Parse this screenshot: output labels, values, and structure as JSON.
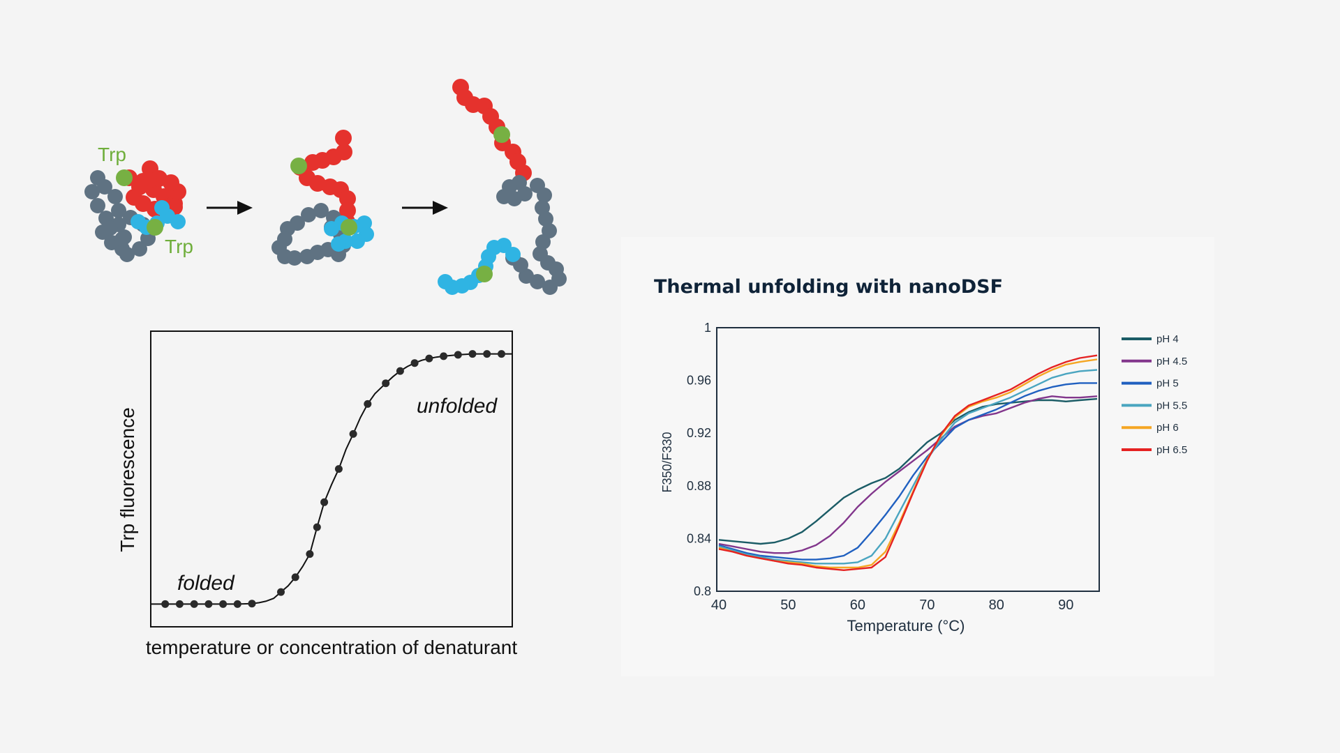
{
  "illustration": {
    "stages": [
      "folded-protein",
      "partially-unfolded-protein",
      "unfolded-protein"
    ],
    "trp_label_top": "Trp",
    "trp_label_bottom": "Trp",
    "colors": {
      "gray": "#5f7282",
      "red": "#e5322d",
      "blue": "#2fb4e3",
      "green": "#77b043"
    }
  },
  "chart_data": [
    {
      "type": "line",
      "title": "",
      "xlabel": "temperature or concentration of denaturant",
      "ylabel": "Trp fluorescence",
      "annotations": {
        "folded": "folded",
        "unfolded": "unfolded"
      },
      "grid": false,
      "x": [
        0.04,
        0.08,
        0.12,
        0.16,
        0.2,
        0.24,
        0.28,
        0.36,
        0.4,
        0.44,
        0.46,
        0.48,
        0.52,
        0.56,
        0.6,
        0.65,
        0.69,
        0.73,
        0.77,
        0.81,
        0.85,
        0.89,
        0.93,
        0.97
      ],
      "values": [
        0.0,
        0.0,
        0.0,
        0.0,
        0.0,
        0.0,
        0.002,
        0.053,
        0.118,
        0.22,
        0.338,
        0.448,
        0.594,
        0.748,
        0.88,
        0.971,
        1.025,
        1.06,
        1.08,
        1.09,
        1.096,
        1.1,
        1.1,
        1.1
      ],
      "curve_x": [
        0.0,
        0.04,
        0.08,
        0.12,
        0.16,
        0.2,
        0.24,
        0.28,
        0.3,
        0.32,
        0.34,
        0.36,
        0.38,
        0.4,
        0.42,
        0.44,
        0.46,
        0.48,
        0.5,
        0.52,
        0.54,
        0.56,
        0.58,
        0.6,
        0.62,
        0.65,
        0.67,
        0.69,
        0.71,
        0.73,
        0.75,
        0.77,
        0.79,
        0.81,
        0.83,
        0.85,
        0.87,
        0.89,
        0.91,
        0.93,
        0.95,
        0.97,
        1.0
      ],
      "curve_y": [
        0.0,
        0.0,
        0.0,
        0.0,
        0.0,
        0.0,
        0.0,
        0.002,
        0.006,
        0.013,
        0.025,
        0.053,
        0.08,
        0.118,
        0.165,
        0.22,
        0.338,
        0.448,
        0.525,
        0.594,
        0.68,
        0.748,
        0.82,
        0.88,
        0.925,
        0.971,
        1.0,
        1.025,
        1.045,
        1.06,
        1.072,
        1.08,
        1.086,
        1.09,
        1.093,
        1.096,
        1.098,
        1.1,
        1.1,
        1.1,
        1.1,
        1.1,
        1.1
      ],
      "xlim": [
        0,
        1
      ],
      "ylim": [
        -0.1,
        1.2
      ]
    },
    {
      "type": "line",
      "title": "Thermal unfolding with nanoDSF",
      "xlabel": "Temperature (°C)",
      "ylabel": "F350/F330",
      "xlim": [
        39.7,
        94.8
      ],
      "ylim": [
        0.8,
        1.0
      ],
      "xticks": [
        40,
        50,
        60,
        70,
        80,
        90
      ],
      "yticks": [
        0.8,
        0.84,
        0.88,
        0.92,
        0.96,
        1.0
      ],
      "ytick_labels": [
        "0.8",
        "0.84",
        "0.88",
        "0.92",
        "0.96",
        "1"
      ],
      "legend_position": "right",
      "grid": false,
      "x": [
        40,
        42,
        44,
        46,
        48,
        50,
        52,
        54,
        56,
        58,
        60,
        62,
        64,
        66,
        68,
        70,
        72,
        74,
        76,
        78,
        80,
        82,
        84,
        86,
        88,
        90,
        92,
        94.5
      ],
      "series": [
        {
          "name": "pH 4",
          "color": "#1b5c66",
          "values": [
            0.839,
            0.838,
            0.837,
            0.836,
            0.837,
            0.84,
            0.845,
            0.853,
            0.862,
            0.871,
            0.877,
            0.882,
            0.886,
            0.893,
            0.903,
            0.913,
            0.92,
            0.93,
            0.936,
            0.94,
            0.942,
            0.943,
            0.944,
            0.945,
            0.945,
            0.944,
            0.945,
            0.946
          ]
        },
        {
          "name": "pH 4.5",
          "color": "#82368c",
          "values": [
            0.836,
            0.834,
            0.832,
            0.83,
            0.829,
            0.829,
            0.831,
            0.835,
            0.842,
            0.852,
            0.864,
            0.874,
            0.883,
            0.891,
            0.899,
            0.907,
            0.916,
            0.925,
            0.93,
            0.933,
            0.935,
            0.939,
            0.943,
            0.946,
            0.948,
            0.947,
            0.947,
            0.948
          ]
        },
        {
          "name": "pH 5",
          "color": "#2060c0",
          "values": [
            0.835,
            0.832,
            0.829,
            0.827,
            0.826,
            0.825,
            0.824,
            0.824,
            0.825,
            0.827,
            0.833,
            0.845,
            0.858,
            0.872,
            0.888,
            0.902,
            0.913,
            0.924,
            0.93,
            0.934,
            0.938,
            0.943,
            0.948,
            0.952,
            0.955,
            0.957,
            0.958,
            0.958
          ]
        },
        {
          "name": "pH 5.5",
          "color": "#4aa5c0",
          "values": [
            0.834,
            0.831,
            0.828,
            0.826,
            0.824,
            0.823,
            0.822,
            0.821,
            0.821,
            0.821,
            0.822,
            0.827,
            0.84,
            0.86,
            0.88,
            0.9,
            0.915,
            0.928,
            0.935,
            0.939,
            0.943,
            0.947,
            0.952,
            0.957,
            0.962,
            0.965,
            0.967,
            0.968
          ]
        },
        {
          "name": "pH 6",
          "color": "#f5a623",
          "values": [
            0.833,
            0.83,
            0.827,
            0.825,
            0.823,
            0.822,
            0.821,
            0.819,
            0.818,
            0.818,
            0.818,
            0.82,
            0.83,
            0.852,
            0.876,
            0.9,
            0.918,
            0.932,
            0.94,
            0.944,
            0.947,
            0.951,
            0.957,
            0.963,
            0.968,
            0.972,
            0.974,
            0.976
          ]
        },
        {
          "name": "pH 6.5",
          "color": "#e52222",
          "values": [
            0.832,
            0.83,
            0.827,
            0.825,
            0.823,
            0.821,
            0.82,
            0.818,
            0.817,
            0.816,
            0.817,
            0.818,
            0.826,
            0.85,
            0.875,
            0.899,
            0.919,
            0.933,
            0.941,
            0.945,
            0.949,
            0.953,
            0.959,
            0.965,
            0.97,
            0.974,
            0.977,
            0.979
          ]
        }
      ]
    }
  ]
}
